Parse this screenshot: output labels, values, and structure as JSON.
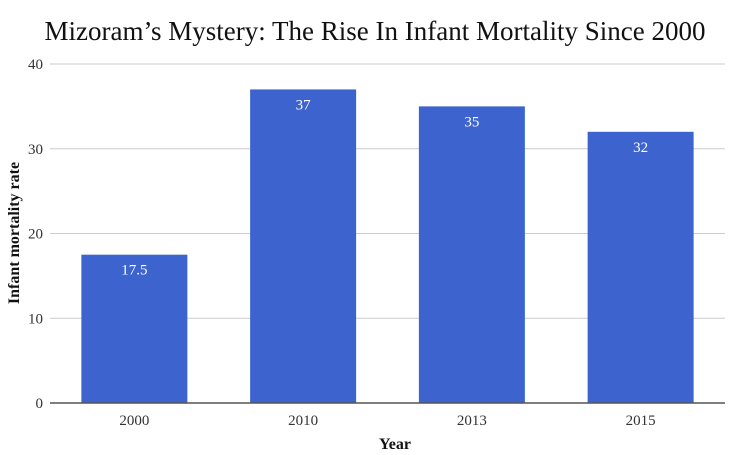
{
  "chart_data": {
    "type": "bar",
    "title": "Mizoram’s Mystery: The Rise In Infant Mortality Since 2000",
    "xlabel": "Year",
    "ylabel": "Infant mortality rate",
    "categories": [
      "2000",
      "2010",
      "2013",
      "2015"
    ],
    "values": [
      17.5,
      37,
      35,
      32
    ],
    "data_labels": [
      "17.5",
      "37",
      "35",
      "32"
    ],
    "ylim": [
      0,
      40
    ],
    "yticks": [
      0,
      10,
      20,
      30,
      40
    ],
    "grid": true,
    "legend": "none",
    "colors": {
      "bar": "#3d63cf",
      "grid": "#cccccc",
      "baseline": "#555555"
    }
  }
}
